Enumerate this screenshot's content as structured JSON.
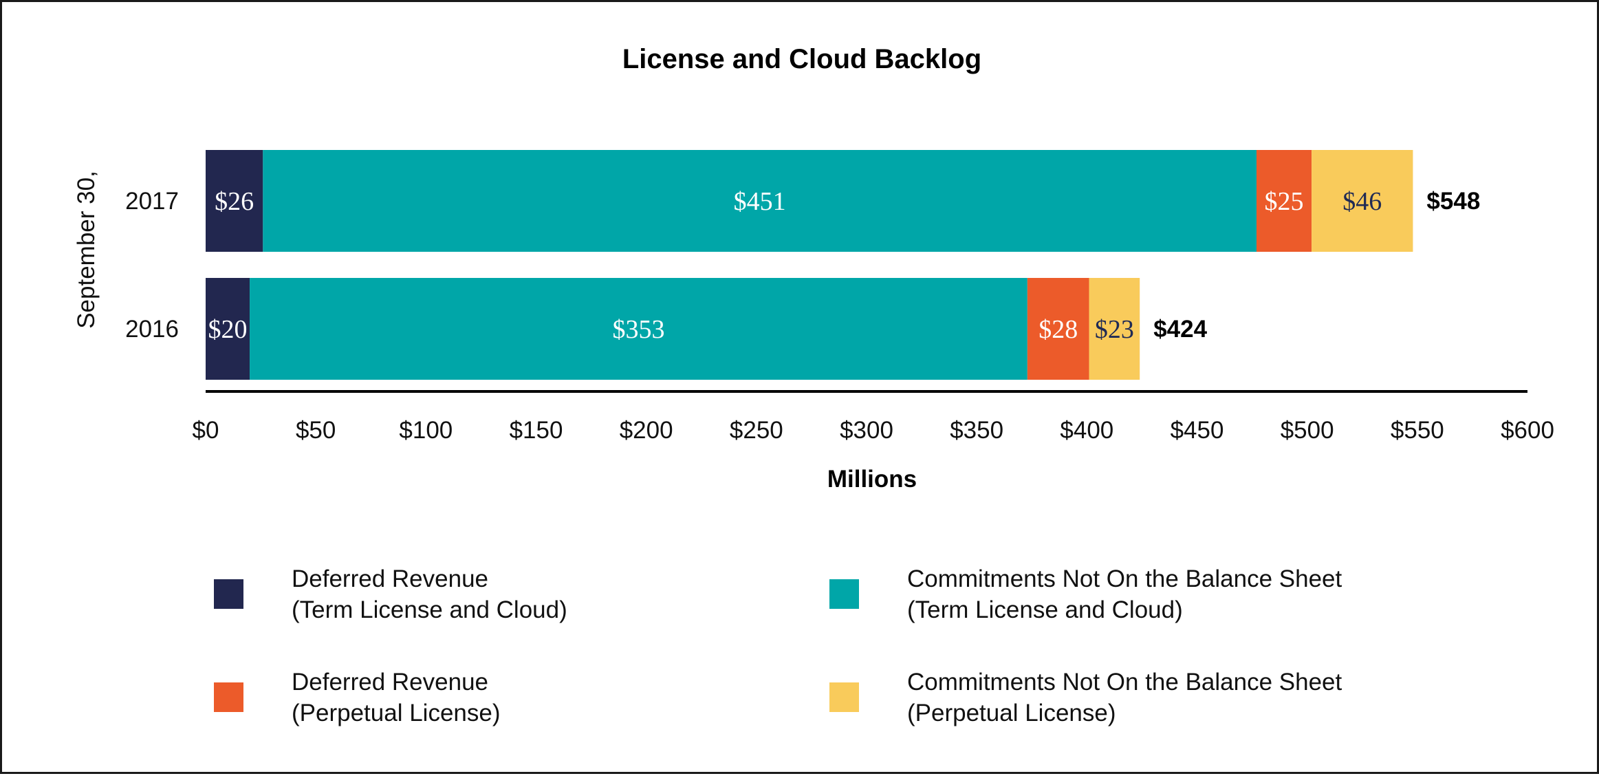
{
  "chart_data": {
    "type": "bar",
    "orientation": "horizontal",
    "stacked": true,
    "title": "License and Cloud Backlog",
    "xlabel": "Millions",
    "ylabel": "September 30,",
    "xlim": [
      0,
      600
    ],
    "x_ticks": [
      "$0",
      "$50",
      "$100",
      "$150",
      "$200",
      "$250",
      "$300",
      "$350",
      "$400",
      "$450",
      "$500",
      "$550",
      "$600"
    ],
    "categories": [
      "2017",
      "2016"
    ],
    "series": [
      {
        "name": "Deferred Revenue (Term License and Cloud)",
        "name_lines": [
          "Deferred Revenue",
          "(Term License and Cloud)"
        ],
        "color": "#22274f",
        "label_color": "#ffffff",
        "values": [
          26,
          20
        ],
        "labels": [
          "$26",
          "$20"
        ]
      },
      {
        "name": "Commitments Not On the Balance Sheet (Term License and Cloud)",
        "name_lines": [
          "Commitments Not On the Balance Sheet",
          "(Term License and Cloud)"
        ],
        "color": "#00a6a8",
        "label_color": "#ffffff",
        "values": [
          451,
          353
        ],
        "labels": [
          "$451",
          "$353"
        ]
      },
      {
        "name": "Deferred Revenue (Perpetual License)",
        "name_lines": [
          "Deferred Revenue",
          "(Perpetual License)"
        ],
        "color": "#ec5b2a",
        "label_color": "#ffffff",
        "values": [
          25,
          28
        ],
        "labels": [
          "$25",
          "$28"
        ]
      },
      {
        "name": "Commitments Not On the Balance Sheet (Perpetual License)",
        "name_lines": [
          "Commitments Not On the Balance Sheet",
          "(Perpetual License)"
        ],
        "color": "#f9cb5b",
        "label_color": "#1f2a55",
        "values": [
          46,
          23
        ],
        "labels": [
          "$46",
          "$23"
        ]
      }
    ],
    "totals": [
      548,
      424
    ],
    "total_labels": [
      "$548",
      "$424"
    ],
    "legend_position": "bottom",
    "grid": false
  }
}
